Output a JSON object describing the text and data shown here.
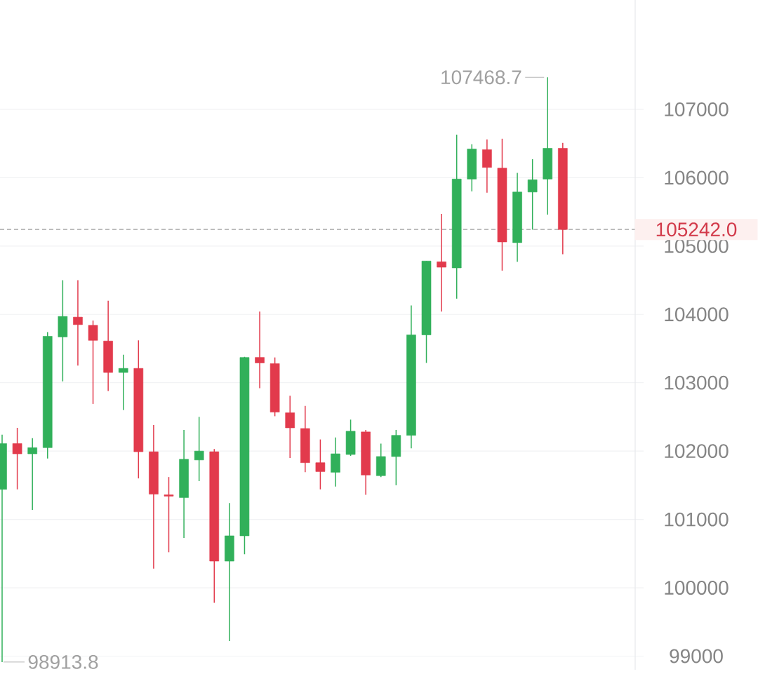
{
  "chart_data": {
    "type": "candlestick",
    "categories": [
      null,
      null,
      null,
      null,
      null,
      null,
      null,
      null,
      null,
      null,
      null,
      null,
      null,
      null,
      null,
      null,
      null,
      null,
      null,
      null,
      null,
      null,
      null,
      null,
      null,
      null,
      null,
      null,
      null,
      null,
      null,
      null,
      null,
      null,
      null,
      null,
      null,
      null
    ],
    "ohlc": [
      [
        101440,
        102240,
        98913.8,
        102110
      ],
      [
        102110,
        102340,
        101440,
        101960
      ],
      [
        101960,
        102190,
        101140,
        102050
      ],
      [
        102050,
        103740,
        101890,
        103680
      ],
      [
        103670,
        104500,
        103020,
        103970
      ],
      [
        103960,
        104500,
        103250,
        103850
      ],
      [
        103840,
        103910,
        102690,
        103620
      ],
      [
        103610,
        104200,
        102880,
        103150
      ],
      [
        103150,
        103410,
        102600,
        103210
      ],
      [
        103210,
        103620,
        101600,
        101990
      ],
      [
        101990,
        102380,
        100280,
        101370
      ],
      [
        101360,
        101620,
        100520,
        101340
      ],
      [
        101320,
        102310,
        100730,
        101880
      ],
      [
        101870,
        102500,
        101560,
        102000
      ],
      [
        101990,
        102030,
        99780,
        100390
      ],
      [
        100390,
        101240,
        99220,
        100760
      ],
      [
        100760,
        103380,
        100490,
        103370
      ],
      [
        103370,
        104040,
        102920,
        103290
      ],
      [
        103280,
        103370,
        102510,
        102570
      ],
      [
        102560,
        102810,
        101900,
        102340
      ],
      [
        102330,
        102660,
        101690,
        101830
      ],
      [
        101830,
        102170,
        101440,
        101700
      ],
      [
        101690,
        102200,
        101480,
        101960
      ],
      [
        101950,
        102460,
        101930,
        102290
      ],
      [
        102280,
        102310,
        101360,
        101650
      ],
      [
        101640,
        102110,
        101620,
        101920
      ],
      [
        101920,
        102310,
        101500,
        102230
      ],
      [
        102230,
        104130,
        102040,
        103700
      ],
      [
        103700,
        104780,
        103290,
        104780
      ],
      [
        104770,
        105470,
        104040,
        104690
      ],
      [
        104680,
        106630,
        104230,
        105980
      ],
      [
        105980,
        106490,
        105800,
        106420
      ],
      [
        106410,
        106560,
        105780,
        106150
      ],
      [
        106140,
        106570,
        104640,
        105060
      ],
      [
        105050,
        106070,
        104770,
        105790
      ],
      [
        105790,
        106270,
        105240,
        105970
      ],
      [
        105980,
        107468.7,
        105460,
        106430
      ],
      [
        106430,
        106510,
        104880,
        105242.0
      ]
    ],
    "colors": [
      "#31b05a",
      "#e23a4c",
      "#31b05a",
      "#31b05a",
      "#31b05a",
      "#e23a4c",
      "#e23a4c",
      "#e23a4c",
      "#31b05a",
      "#e23a4c",
      "#e23a4c",
      "#e23a4c",
      "#31b05a",
      "#31b05a",
      "#e23a4c",
      "#31b05a",
      "#31b05a",
      "#e23a4c",
      "#e23a4c",
      "#e23a4c",
      "#e23a4c",
      "#e23a4c",
      "#31b05a",
      "#31b05a",
      "#e23a4c",
      "#31b05a",
      "#31b05a",
      "#31b05a",
      "#31b05a",
      "#e23a4c",
      "#31b05a",
      "#31b05a",
      "#e23a4c",
      "#e23a4c",
      "#31b05a",
      "#31b05a",
      "#31b05a",
      "#e23a4c"
    ],
    "ylim": [
      98800,
      108600
    ],
    "yticks": [
      99000,
      100000,
      101000,
      102000,
      103000,
      104000,
      105000,
      106000,
      107000
    ],
    "grid": "y",
    "tick_labels": "y",
    "ref_lines": [
      {
        "axis": "y",
        "value": 105242.0,
        "label": "105242.0",
        "color": "#9e9e9e",
        "line_style": "dashed"
      }
    ],
    "annotations": [
      "107468.7",
      "98913.8"
    ]
  }
}
